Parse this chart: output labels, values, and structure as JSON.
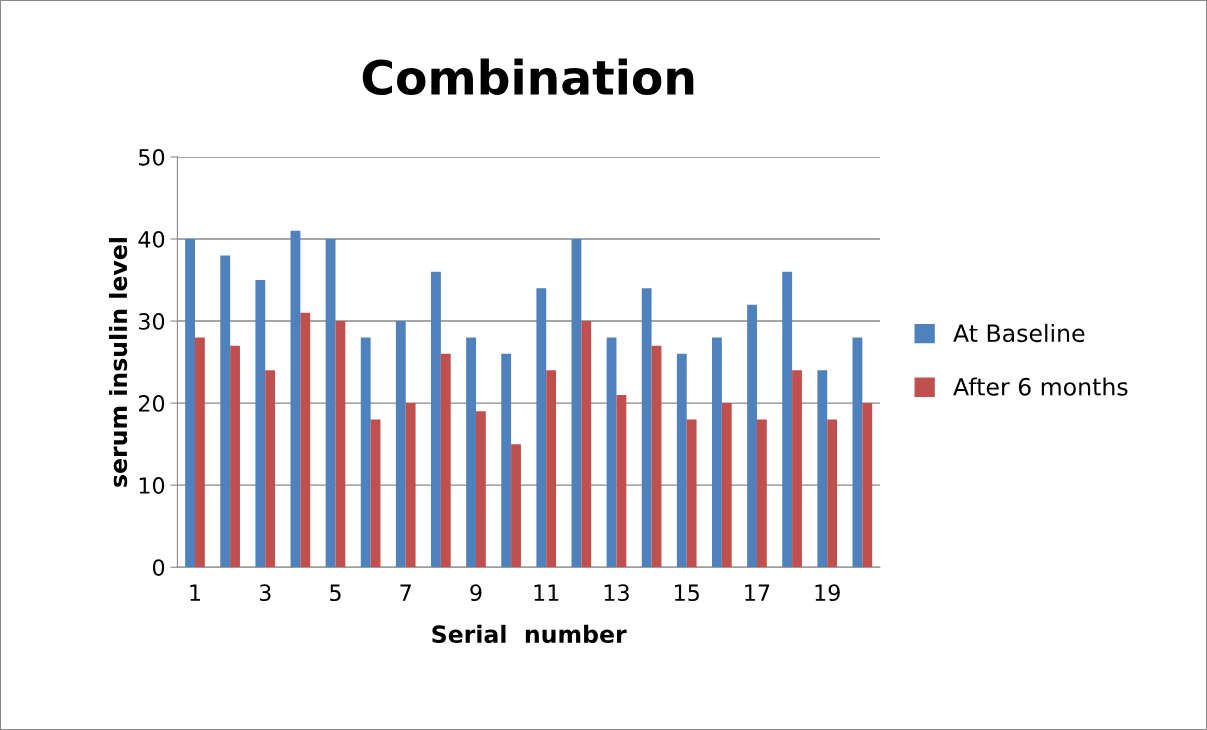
{
  "chart_data": {
    "type": "bar",
    "title": "Combination",
    "xlabel": "Serial  number",
    "ylabel": "serum insulin level",
    "categories": [
      "1",
      null,
      "3",
      null,
      "5",
      null,
      "7",
      null,
      "9",
      null,
      "11",
      null,
      "13",
      null,
      "15",
      null,
      "17",
      null,
      "19",
      null
    ],
    "series": [
      {
        "name": "At Baseline",
        "color": "#4f81bd",
        "values": [
          40,
          38,
          35,
          41,
          40,
          28,
          30,
          36,
          28,
          26,
          34,
          40,
          28,
          34,
          26,
          28,
          32,
          36,
          24,
          28
        ]
      },
      {
        "name": "After 6 months",
        "color": "#c0504d",
        "values": [
          28,
          27,
          24,
          31,
          30,
          18,
          20,
          26,
          19,
          15,
          24,
          30,
          21,
          27,
          18,
          20,
          18,
          24,
          18,
          20
        ]
      }
    ],
    "ylim": [
      0,
      50
    ],
    "yticks": [
      0,
      10,
      20,
      30,
      40,
      50
    ],
    "grid": "y",
    "legend": "right"
  }
}
